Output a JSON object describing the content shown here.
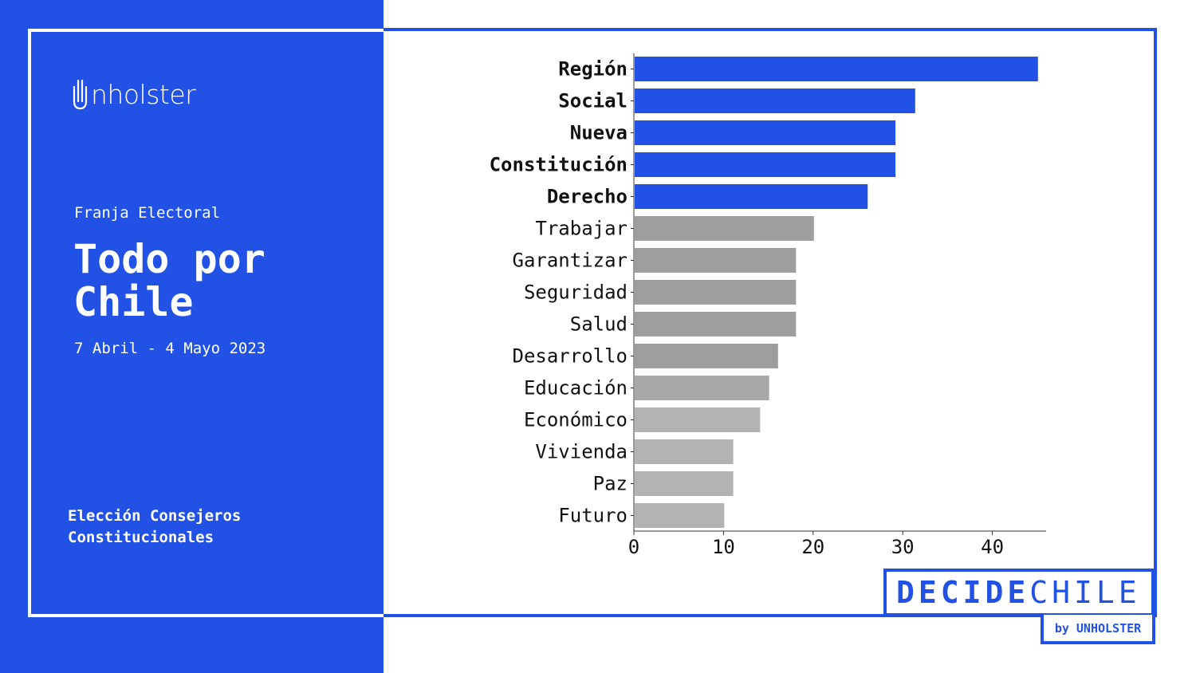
{
  "brand": {
    "logo_text": "nholster"
  },
  "sidebar": {
    "subtitle": "Franja Electoral",
    "title": "Todo por Chile",
    "date_range": "7 Abril - 4 Mayo 2023",
    "footer_line1": "Elección Consejeros",
    "footer_line2": "Constitucionales"
  },
  "badge": {
    "decide": "DECIDE",
    "chile": "CHILE",
    "by": "by UNHOLSTER"
  },
  "colors": {
    "accent": "#2251e5",
    "highlight_bar": "#2251e5",
    "bar_gray": "#9e9e9e",
    "bar_light_gray": "#b3b3b3",
    "background": "#ffffff"
  },
  "chart_data": {
    "type": "bar",
    "orientation": "horizontal",
    "categories": [
      "Región",
      "Social",
      "Nueva",
      "Constitución",
      "Derecho",
      "Trabajar",
      "Garantizar",
      "Seguridad",
      "Salud",
      "Desarrollo",
      "Educación",
      "Económico",
      "Vivienda",
      "Paz",
      "Futuro"
    ],
    "values": [
      45,
      31.3,
      29.1,
      29.1,
      26,
      20,
      18,
      18,
      18,
      16,
      15,
      14,
      11,
      11,
      10
    ],
    "highlighted": [
      true,
      true,
      true,
      true,
      true,
      false,
      false,
      false,
      false,
      false,
      false,
      false,
      false,
      false,
      false
    ],
    "bar_colors": [
      "#2251e5",
      "#2251e5",
      "#2251e5",
      "#2251e5",
      "#2251e5",
      "#9e9e9e",
      "#9e9e9e",
      "#9e9e9e",
      "#9e9e9e",
      "#9e9e9e",
      "#a8a8a8",
      "#b3b3b3",
      "#b3b3b3",
      "#b3b3b3",
      "#b3b3b3"
    ],
    "xticks": [
      0,
      10,
      20,
      30,
      40
    ],
    "xlim": [
      0,
      46
    ],
    "title": "",
    "xlabel": "",
    "ylabel": "",
    "grid": false,
    "legend": "none"
  }
}
